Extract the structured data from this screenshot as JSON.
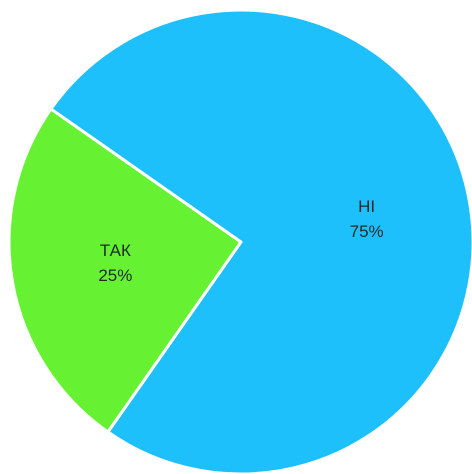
{
  "chart_data": {
    "type": "pie",
    "title": "",
    "start_angle_deg": 215,
    "direction": "clockwise",
    "slices": [
      {
        "label": "ТАК",
        "value": 25,
        "percent_label": "25%",
        "color": "#66f232"
      },
      {
        "label": "НІ",
        "value": 75,
        "percent_label": "75%",
        "color": "#1ec0fb"
      }
    ],
    "slice_border_color": "#ffffff",
    "legend": "none"
  }
}
